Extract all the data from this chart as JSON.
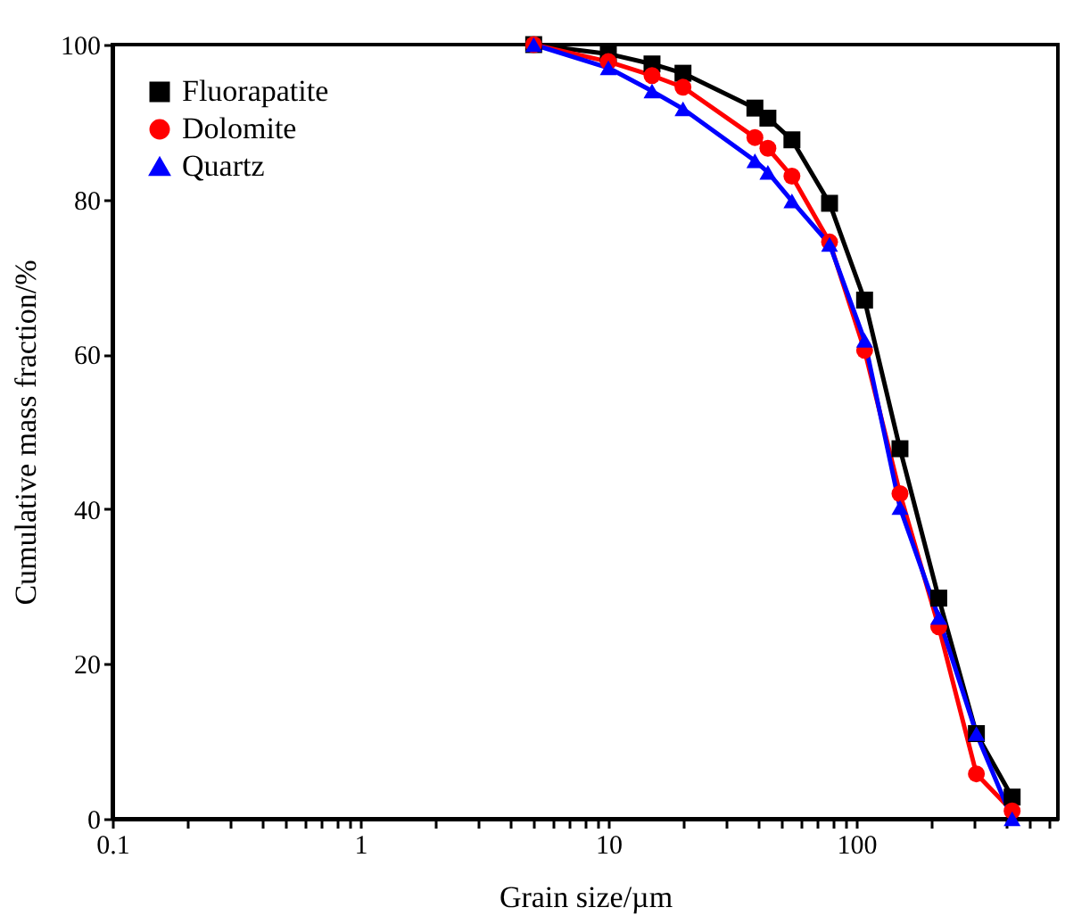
{
  "chart_data": {
    "type": "line",
    "xlabel": "Grain size/µm",
    "ylabel": "Cumulative mass fraction/%",
    "log": "x",
    "xlim": [
      0.1,
      650
    ],
    "ylim": [
      0,
      100
    ],
    "xticks": [
      0.1,
      {
        "value": 0.2,
        "label": null
      },
      {
        "value": 0.3,
        "label": null
      },
      {
        "value": 0.4,
        "label": null
      },
      {
        "value": 0.5,
        "label": null
      },
      {
        "value": 0.6,
        "label": null
      },
      {
        "value": 0.7,
        "label": null
      },
      {
        "value": 0.8,
        "label": null
      },
      {
        "value": 0.9,
        "label": null
      },
      1,
      {
        "value": 2,
        "label": null
      },
      {
        "value": 3,
        "label": null
      },
      {
        "value": 4,
        "label": null
      },
      {
        "value": 5,
        "label": null
      },
      {
        "value": 6,
        "label": null
      },
      {
        "value": 7,
        "label": null
      },
      {
        "value": 8,
        "label": null
      },
      {
        "value": 9,
        "label": null
      },
      10,
      {
        "value": 20,
        "label": null
      },
      {
        "value": 30,
        "label": null
      },
      {
        "value": 40,
        "label": null
      },
      {
        "value": 50,
        "label": null
      },
      {
        "value": 60,
        "label": null
      },
      {
        "value": 70,
        "label": null
      },
      {
        "value": 80,
        "label": null
      },
      {
        "value": 90,
        "label": null
      },
      100,
      {
        "value": 200,
        "label": null
      },
      {
        "value": 300,
        "label": null
      },
      {
        "value": 400,
        "label": null
      },
      {
        "value": 500,
        "label": null
      },
      {
        "value": 600,
        "label": null
      }
    ],
    "yticks": [
      0,
      20,
      40,
      60,
      80,
      100
    ],
    "grid": false,
    "legend": "top left",
    "line_style": "solid",
    "x": [
      5,
      10,
      15,
      20,
      39,
      44,
      55,
      78,
      108,
      150,
      215,
      305,
      425
    ],
    "series": [
      {
        "name": "Fluorapatite",
        "color": "#000000",
        "marker": "square",
        "values": [
          100,
          98.8,
          97.5,
          96.3,
          91.8,
          90.5,
          87.7,
          79.5,
          67,
          47.8,
          28.5,
          11,
          2.8
        ]
      },
      {
        "name": "Dolomite",
        "color": "#ff0000",
        "marker": "circle",
        "values": [
          100,
          97.8,
          96,
          94.5,
          88,
          86.6,
          83,
          74.5,
          60.5,
          42,
          24.8,
          5.8,
          1
        ]
      },
      {
        "name": "Quartz",
        "color": "#0000ff",
        "marker": "triangle",
        "values": [
          100,
          97,
          94,
          91.7,
          85,
          83.5,
          79.8,
          74.2,
          61.8,
          40.2,
          26,
          11,
          0
        ]
      }
    ]
  }
}
